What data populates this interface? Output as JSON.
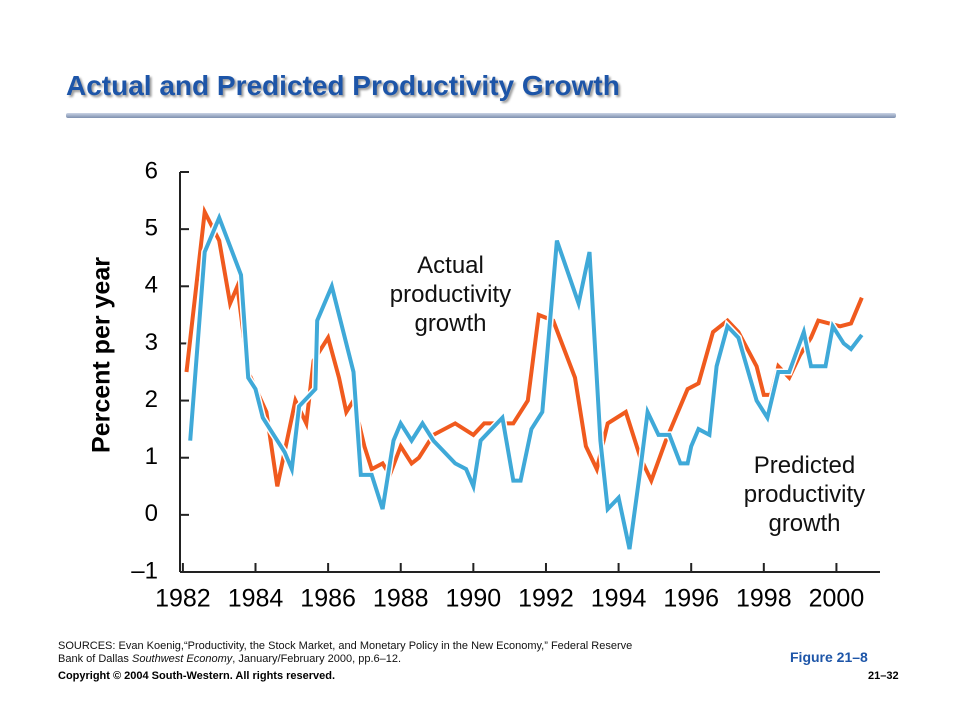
{
  "title": "Actual and Predicted Productivity Growth",
  "chart_data": {
    "type": "line",
    "ylabel": "Percent per year",
    "xlim": [
      1981.7,
      2001.2
    ],
    "xticks": [
      1982,
      1984,
      1986,
      1988,
      1990,
      1992,
      1994,
      1996,
      1998,
      2000
    ],
    "ylim": [
      -1,
      6
    ],
    "yticks": [
      {
        "value": -1,
        "label": "–1"
      },
      0,
      1,
      2,
      3,
      4,
      5,
      6
    ],
    "series": [
      {
        "name": "Predicted productivity growth",
        "color": "#f05a1e",
        "x": [
          1982.1,
          1982.6,
          1983.0,
          1983.3,
          1983.5,
          1983.8,
          1984.3,
          1984.6,
          1985.1,
          1985.4,
          1985.6,
          1986.0,
          1986.3,
          1986.5,
          1986.7,
          1987.0,
          1987.2,
          1987.5,
          1987.7,
          1988.0,
          1988.3,
          1988.5,
          1988.9,
          1989.5,
          1990.0,
          1990.3,
          1990.7,
          1991.1,
          1991.5,
          1991.8,
          1992.2,
          1992.8,
          1993.1,
          1993.4,
          1993.7,
          1994.2,
          1994.6,
          1994.9,
          1995.3,
          1995.9,
          1996.2,
          1996.6,
          1997.0,
          1997.3,
          1997.8,
          1998.0,
          1998.2,
          1998.4,
          1998.7,
          1999.0,
          1999.3,
          1999.5,
          2000.1,
          2000.4,
          2000.7
        ],
        "values": [
          2.5,
          5.3,
          4.8,
          3.7,
          4.0,
          2.5,
          1.8,
          0.5,
          2.0,
          1.6,
          2.7,
          3.1,
          2.4,
          1.8,
          2.0,
          1.2,
          0.8,
          0.9,
          0.7,
          1.2,
          0.9,
          1.0,
          1.4,
          1.6,
          1.4,
          1.6,
          1.6,
          1.6,
          2.0,
          3.5,
          3.4,
          2.4,
          1.2,
          0.8,
          1.6,
          1.8,
          1.0,
          0.6,
          1.3,
          2.2,
          2.3,
          3.2,
          3.4,
          3.2,
          2.6,
          2.1,
          2.1,
          2.6,
          2.4,
          2.8,
          3.1,
          3.4,
          3.3,
          3.35,
          3.8
        ]
      },
      {
        "name": "Actual productivity growth",
        "color": "#3fa9d8",
        "x": [
          1982.2,
          1982.6,
          1983.0,
          1983.6,
          1983.8,
          1984.0,
          1984.2,
          1984.5,
          1984.8,
          1985.0,
          1985.2,
          1985.65,
          1985.7,
          1986.1,
          1986.7,
          1986.9,
          1987.2,
          1987.5,
          1987.8,
          1988.0,
          1988.3,
          1988.6,
          1988.9,
          1989.2,
          1989.5,
          1989.8,
          1990.0,
          1990.2,
          1990.8,
          1991.1,
          1991.3,
          1991.6,
          1991.9,
          1992.3,
          1992.9,
          1993.2,
          1993.5,
          1993.7,
          1994.0,
          1994.3,
          1994.6,
          1994.8,
          1995.1,
          1995.4,
          1995.7,
          1995.9,
          1996.0,
          1996.2,
          1996.5,
          1996.7,
          1997.0,
          1997.3,
          1997.8,
          1998.1,
          1998.4,
          1998.7,
          1999.1,
          1999.3,
          1999.7,
          1999.9,
          2000.2,
          2000.4,
          2000.7
        ],
        "values": [
          1.3,
          4.6,
          5.2,
          4.2,
          2.4,
          2.2,
          1.7,
          1.4,
          1.1,
          0.8,
          1.9,
          2.2,
          3.4,
          4.0,
          2.5,
          0.7,
          0.7,
          0.1,
          1.3,
          1.6,
          1.3,
          1.6,
          1.3,
          1.1,
          0.9,
          0.8,
          0.5,
          1.3,
          1.7,
          0.6,
          0.6,
          1.5,
          1.8,
          4.8,
          3.7,
          4.6,
          1.3,
          0.1,
          0.3,
          -0.6,
          0.8,
          1.8,
          1.4,
          1.4,
          0.9,
          0.9,
          1.2,
          1.5,
          1.4,
          2.6,
          3.3,
          3.1,
          2.0,
          1.7,
          2.5,
          2.5,
          3.2,
          2.6,
          2.6,
          3.3,
          3.0,
          2.9,
          3.15
        ]
      }
    ]
  },
  "sources": [
    "SOURCES: Evan Koenig,“Productivity, the Stock Market, and Monetary Policy in the New Economy,” Federal Reserve Bank of Dallas ",
    "Southwest Economy",
    ", January/February 2000, pp.6–12."
  ],
  "figure": "Figure 21–8",
  "copyright": "Copyright © 2004 South-Western. All rights reserved.",
  "page": "21–32"
}
